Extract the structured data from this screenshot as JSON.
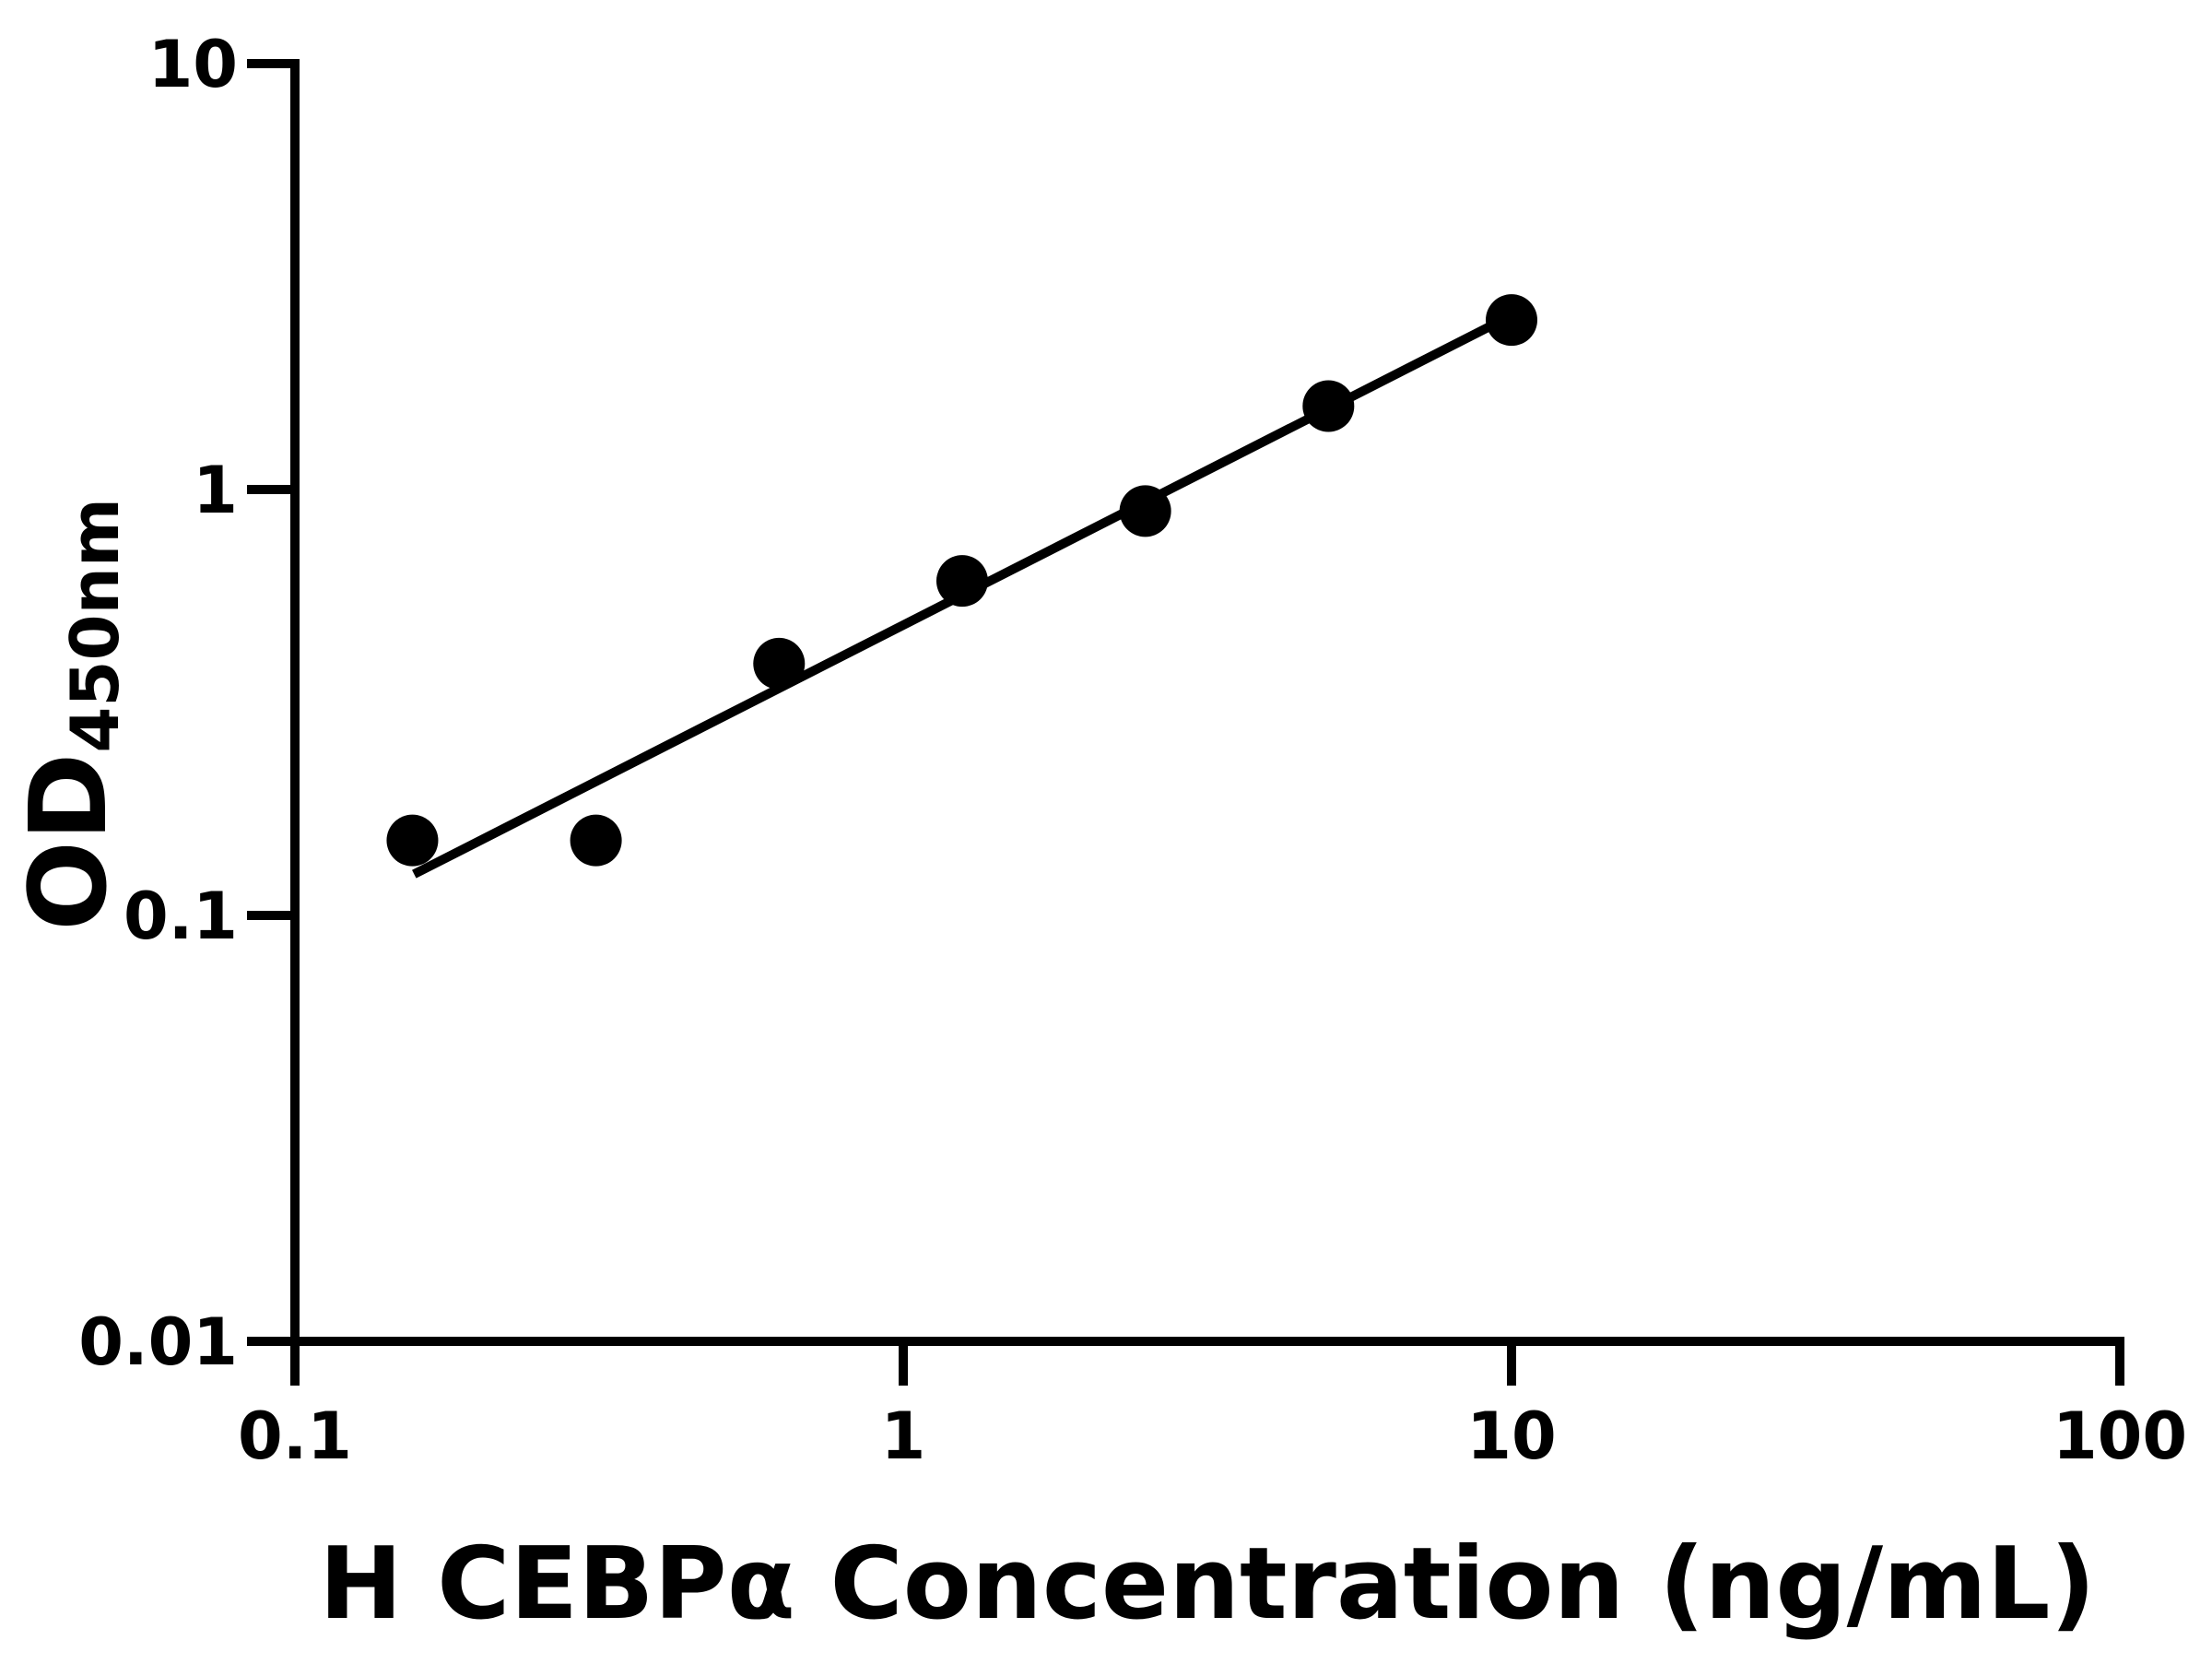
{
  "figure": {
    "background": "#ffffff",
    "ink_color": "#000000"
  },
  "chart_data": {
    "type": "scatter",
    "title": "",
    "xlabel": "H CEBPα Concentration (ng/mL)",
    "ylabel_base": "OD",
    "ylabel_sub": "450nm",
    "x_scale": "log",
    "y_scale": "log",
    "xlim": [
      0.1,
      100
    ],
    "ylim": [
      0.01,
      10
    ],
    "grid": false,
    "legend": "none",
    "x_ticks": [
      {
        "value": 0.1,
        "label": "0.1"
      },
      {
        "value": 1,
        "label": "1"
      },
      {
        "value": 10,
        "label": "10"
      },
      {
        "value": 100,
        "label": "100"
      }
    ],
    "y_ticks": [
      {
        "value": 0.01,
        "label": "0.01"
      },
      {
        "value": 0.1,
        "label": "0.1"
      },
      {
        "value": 1,
        "label": "1"
      },
      {
        "value": 10,
        "label": "10"
      }
    ],
    "series": [
      {
        "marker": "circle",
        "points": [
          {
            "x": 0.156,
            "y": 0.15
          },
          {
            "x": 0.3125,
            "y": 0.15
          },
          {
            "x": 0.625,
            "y": 0.39
          },
          {
            "x": 1.25,
            "y": 0.61
          },
          {
            "x": 2.5,
            "y": 0.89
          },
          {
            "x": 5,
            "y": 1.57
          },
          {
            "x": 10,
            "y": 2.5
          }
        ]
      }
    ],
    "trend_line": {
      "x1": 0.157,
      "y1": 0.125,
      "x2": 9.66,
      "y2": 2.5
    }
  }
}
